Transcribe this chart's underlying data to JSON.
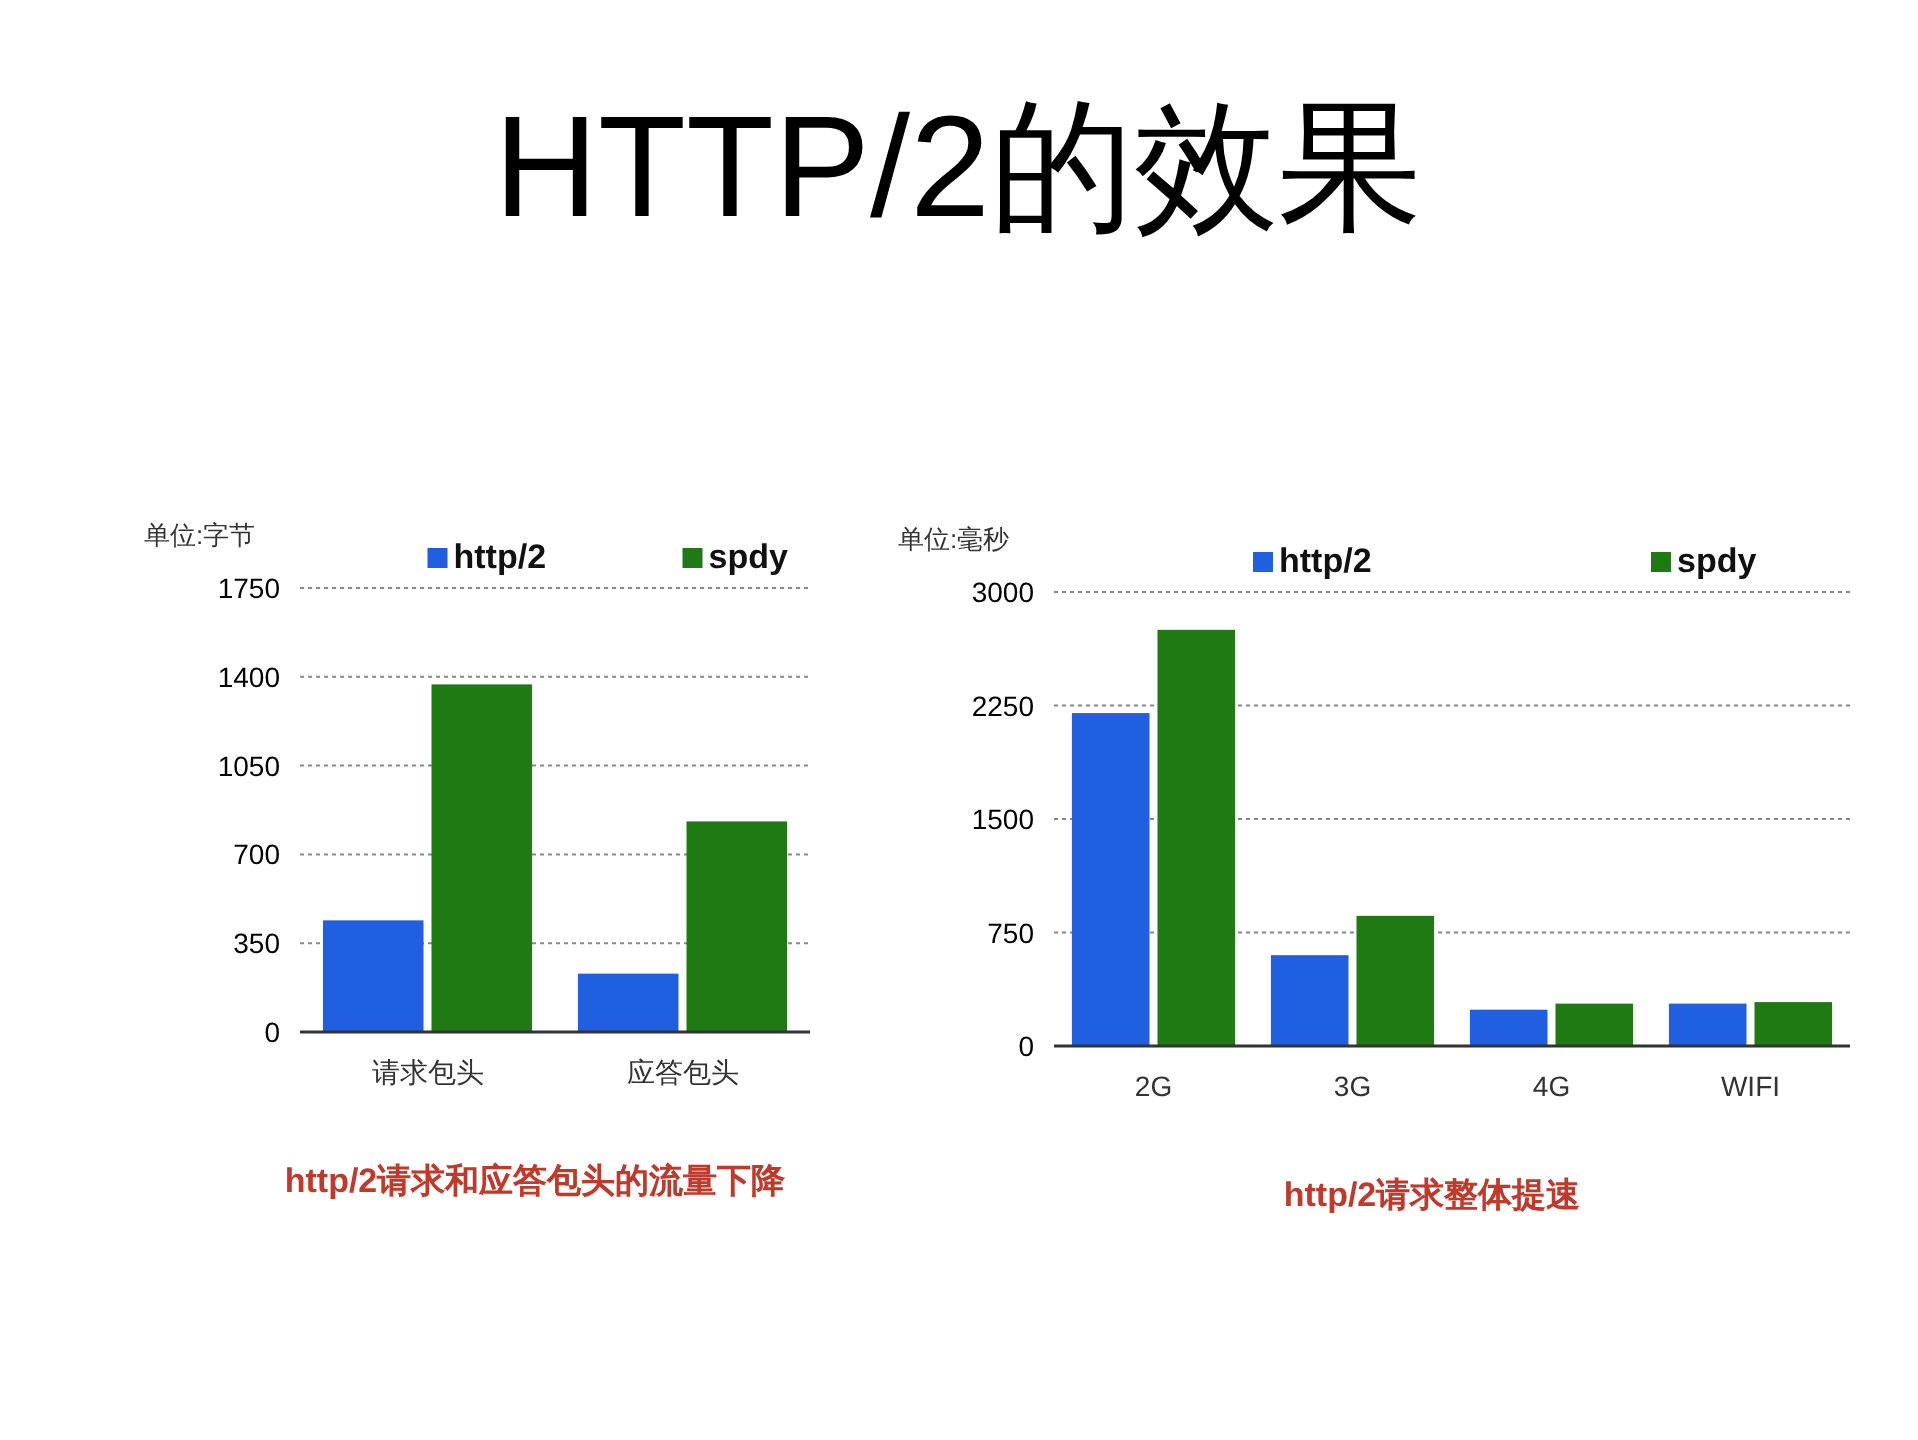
{
  "chart_data": [
    {
      "type": "bar",
      "title": "HTTP/2的效果",
      "ylabel": "单位:字节",
      "categories": [
        "请求包头",
        "应答包头"
      ],
      "series": [
        {
          "name": "http/2",
          "color": "#1f5fe0",
          "values": [
            440,
            230
          ]
        },
        {
          "name": "spdy",
          "color": "#1f7a14",
          "values": [
            1370,
            830
          ]
        }
      ],
      "ylim": [
        0,
        1750
      ],
      "yticks": [
        0,
        350,
        700,
        1050,
        1400,
        1750
      ],
      "grid": "y",
      "legend": "top",
      "annotations": [
        "http/2请求和应答包头的流量下降"
      ]
    },
    {
      "type": "bar",
      "ylabel": "单位:毫秒",
      "categories": [
        "2G",
        "3G",
        "4G",
        "WIFI"
      ],
      "series": [
        {
          "name": "http/2",
          "color": "#1f5fe0",
          "values": [
            2200,
            600,
            240,
            280
          ]
        },
        {
          "name": "spdy",
          "color": "#1f7a14",
          "values": [
            2750,
            860,
            280,
            290
          ]
        }
      ],
      "ylim": [
        0,
        3000
      ],
      "yticks": [
        0,
        750,
        1500,
        2250,
        3000
      ],
      "grid": "y",
      "legend": "top",
      "annotations": [
        "http/2请求整体提速"
      ]
    }
  ]
}
